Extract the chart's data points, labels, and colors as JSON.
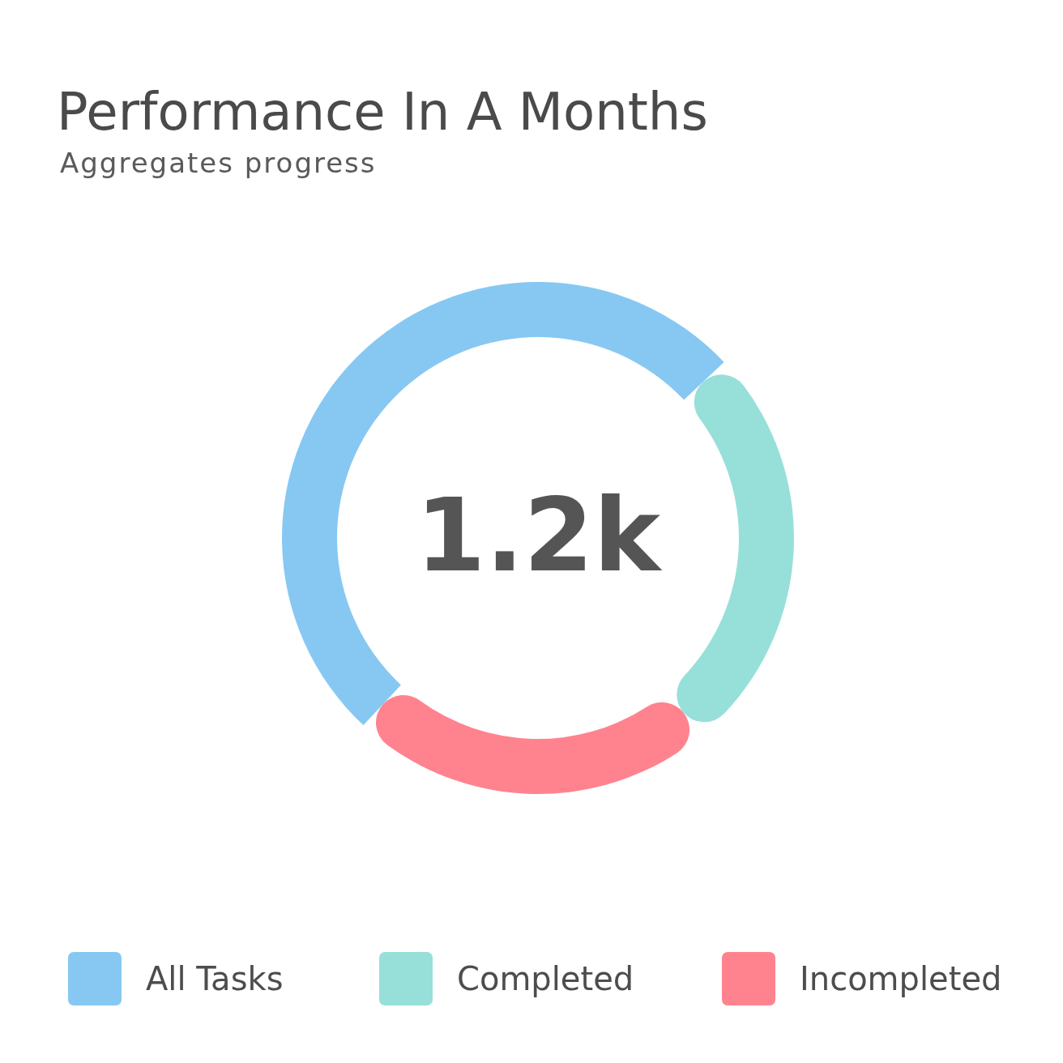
{
  "chart_data": {
    "type": "donut",
    "title": "Performance In A Months",
    "subtitle": "Aggregates progress",
    "categories": [
      "All Tasks",
      "Completed",
      "Incompleted"
    ],
    "values": [
      51,
      26,
      23
    ],
    "colors": [
      "#87c8f2",
      "#97e0d9",
      "#ff838f"
    ],
    "annotations": [
      "1.2k"
    ],
    "legend": "bottom"
  }
}
